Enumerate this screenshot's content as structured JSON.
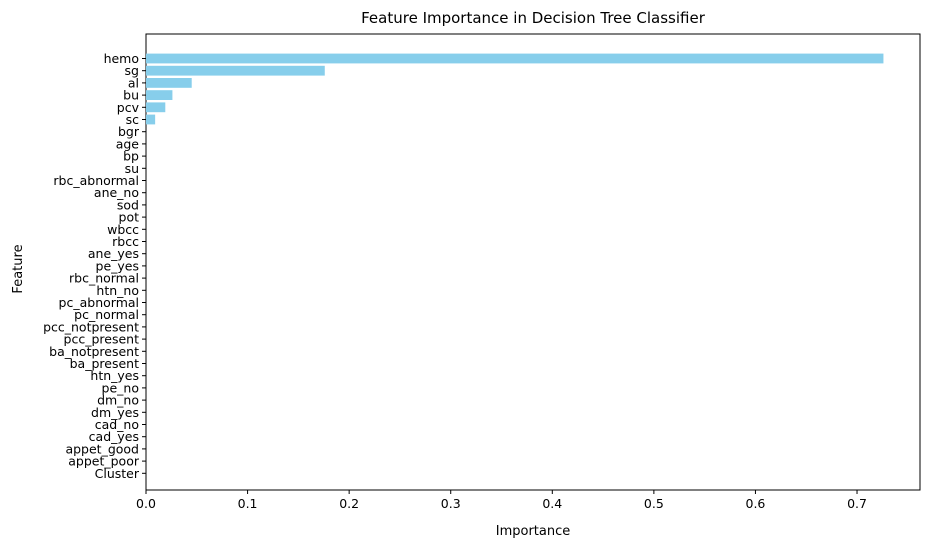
{
  "chart_data": {
    "type": "bar",
    "orientation": "horizontal",
    "title": "Feature Importance in Decision Tree Classifier",
    "xlabel": "Importance",
    "ylabel": "Feature",
    "xlim": [
      0,
      0.762
    ],
    "xticks": [
      0.0,
      0.1,
      0.2,
      0.3,
      0.4,
      0.5,
      0.6,
      0.7
    ],
    "xtick_labels": [
      "0.0",
      "0.1",
      "0.2",
      "0.3",
      "0.4",
      "0.5",
      "0.6",
      "0.7"
    ],
    "grid": false,
    "bar_color": "#87ceeb",
    "categories": [
      "hemo",
      "sg",
      "al",
      "bu",
      "pcv",
      "sc",
      "bgr",
      "age",
      "bp",
      "su",
      "rbc_abnormal",
      "ane_no",
      "sod",
      "pot",
      "wbcc",
      "rbcc",
      "ane_yes",
      "pe_yes",
      "rbc_normal",
      "htn_no",
      "pc_abnormal",
      "pc_normal",
      "pcc_notpresent",
      "pcc_present",
      "ba_notpresent",
      "ba_present",
      "htn_yes",
      "pe_no",
      "dm_no",
      "dm_yes",
      "cad_no",
      "cad_yes",
      "appet_good",
      "appet_poor",
      "Cluster"
    ],
    "values": [
      0.726,
      0.176,
      0.045,
      0.026,
      0.019,
      0.009,
      0,
      0,
      0,
      0,
      0,
      0,
      0,
      0,
      0,
      0,
      0,
      0,
      0,
      0,
      0,
      0,
      0,
      0,
      0,
      0,
      0,
      0,
      0,
      0,
      0,
      0,
      0,
      0,
      0
    ]
  }
}
